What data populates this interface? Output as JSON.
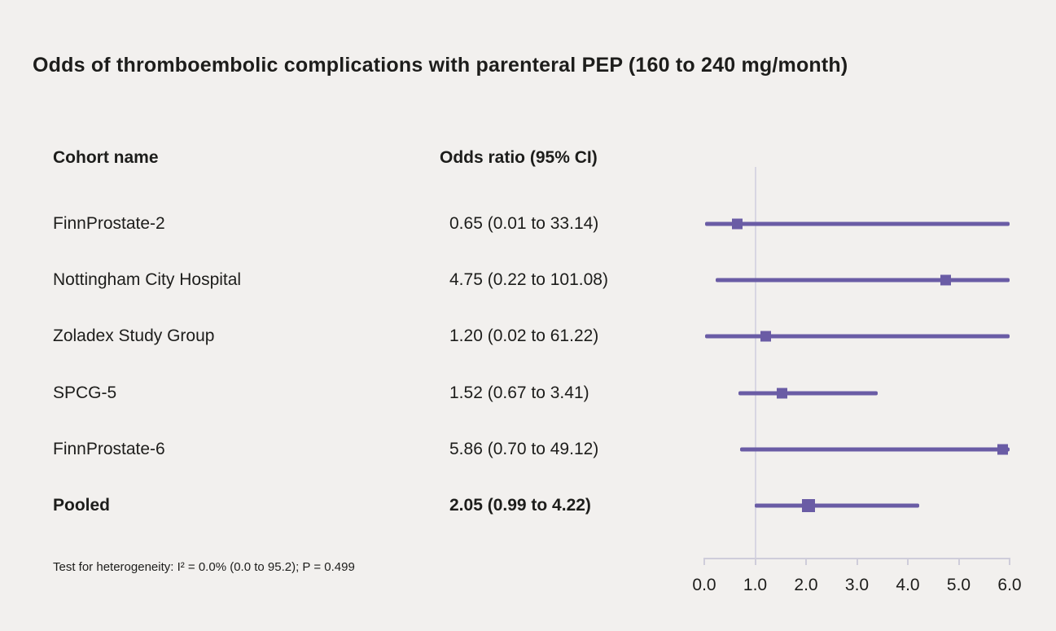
{
  "title": "Odds of thromboembolic complications with parenteral PEP (160 to 240 mg/month)",
  "columns": {
    "cohort": "Cohort name",
    "odds_ratio": "Odds ratio (95% CI)"
  },
  "footnote": "Test for heterogeneity: I² = 0.0% (0.0 to 95.2); P = 0.499",
  "chart_data": {
    "type": "scatter",
    "variant": "forest-plot",
    "title": "Odds of thromboembolic complications with parenteral PEP (160 to 240 mg/month)",
    "xlabel": "",
    "xlim": [
      0,
      6
    ],
    "x_ticks": [
      "0.0",
      "1.0",
      "2.0",
      "3.0",
      "4.0",
      "5.0",
      "6.0"
    ],
    "reference_line_x": 1.0,
    "grid": false,
    "legend": "none",
    "series": [
      {
        "cohort": "FinnProstate-2",
        "or": 0.65,
        "ci_low": 0.01,
        "ci_high": 33.14,
        "label": "0.65 (0.01 to 33.14)",
        "pooled": false
      },
      {
        "cohort": "Nottingham City Hospital",
        "or": 4.75,
        "ci_low": 0.22,
        "ci_high": 101.08,
        "label": "4.75 (0.22 to 101.08)",
        "pooled": false
      },
      {
        "cohort": "Zoladex Study Group",
        "or": 1.2,
        "ci_low": 0.02,
        "ci_high": 61.22,
        "label": "1.20 (0.02 to 61.22)",
        "pooled": false
      },
      {
        "cohort": "SPCG-5",
        "or": 1.52,
        "ci_low": 0.67,
        "ci_high": 3.41,
        "label": "1.52 (0.67 to 3.41)",
        "pooled": false
      },
      {
        "cohort": "FinnProstate-6",
        "or": 5.86,
        "ci_low": 0.7,
        "ci_high": 49.12,
        "label": "5.86 (0.70 to 49.12)",
        "pooled": false
      },
      {
        "cohort": "Pooled",
        "or": 2.05,
        "ci_low": 0.99,
        "ci_high": 4.22,
        "label": "2.05 (0.99 to 4.22)",
        "pooled": true
      }
    ],
    "heterogeneity": "Test for heterogeneity: I² = 0.0% (0.0 to 95.2); P = 0.499"
  },
  "colors": {
    "marker": "#6a5ca5",
    "ci_line": "#6a5ca5",
    "reference_line": "#d8d6e2",
    "axis": "#cfcdda",
    "background": "#f2f0ee",
    "text": "#1d1d1b"
  }
}
